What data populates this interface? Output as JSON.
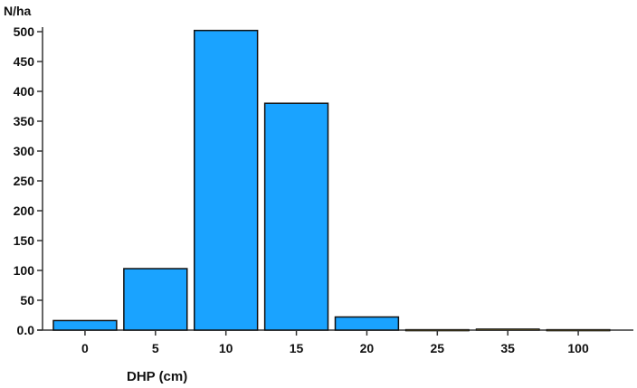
{
  "chart_data": {
    "type": "bar",
    "ylabel": "N/ha",
    "xlabel": "DHP (cm)",
    "categories": [
      "0",
      "5",
      "10",
      "15",
      "20",
      "25",
      "35",
      "100"
    ],
    "values": [
      16,
      103,
      502,
      380,
      22,
      1,
      2,
      1
    ],
    "ylim": [
      0,
      500
    ],
    "yticks": [
      "0.0",
      "50",
      "100",
      "150",
      "200",
      "250",
      "300",
      "350",
      "400",
      "450",
      "500"
    ],
    "grid": false,
    "bar_color": "#1aa3ff",
    "bar_color_small": "#7a6a2a"
  }
}
